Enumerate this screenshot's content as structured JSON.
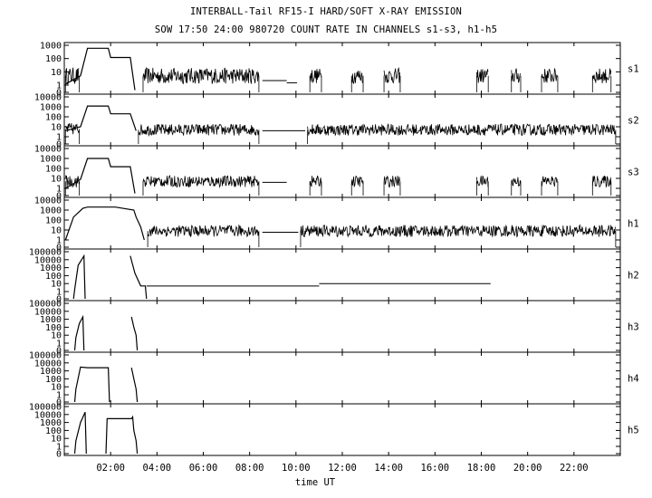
{
  "chart_data": {
    "type": "line",
    "title": "INTERBALL-Tail RF15-I HARD/SOFT X-RAY EMISSION",
    "subtitle": "SOW 17:50 24:00 980720  COUNT RATE IN CHANNELS s1-s3, h1-h5",
    "xlabel": "time UT",
    "xlim": [
      0,
      24
    ],
    "x_ticks": [
      {
        "v": 2,
        "label": "02:00"
      },
      {
        "v": 4,
        "label": "04:00"
      },
      {
        "v": 6,
        "label": "06:00"
      },
      {
        "v": 8,
        "label": "08:00"
      },
      {
        "v": 10,
        "label": "10:00"
      },
      {
        "v": 12,
        "label": "12:00"
      },
      {
        "v": 14,
        "label": "14:00"
      },
      {
        "v": 16,
        "label": "16:00"
      },
      {
        "v": 18,
        "label": "18:00"
      },
      {
        "v": 20,
        "label": "20:00"
      },
      {
        "v": 22,
        "label": "22:00"
      }
    ],
    "y_scale": "log",
    "panels": [
      {
        "name": "s1",
        "y_ticks": [
          {
            "v": 1000,
            "label": "1000"
          },
          {
            "v": 100,
            "label": "100"
          },
          {
            "v": 10,
            "label": "10"
          },
          {
            "v": 1,
            "label": "1"
          },
          {
            "v": 0,
            "label": "0"
          }
        ],
        "envelope": [
          [
            0.05,
            1.2
          ],
          [
            0.7,
            5
          ],
          [
            1.0,
            600
          ],
          [
            1.9,
            600
          ],
          [
            2.0,
            120
          ],
          [
            2.85,
            120
          ],
          [
            3.05,
            0.3
          ]
        ],
        "noisy_segments": [
          {
            "x": [
              0.05,
              0.65
            ],
            "level": 5,
            "amp": 1.5
          },
          {
            "x": [
              3.4,
              8.4
            ],
            "level": 5,
            "amp": 1.4
          },
          {
            "x": [
              10.6,
              11.1
            ],
            "level": 5,
            "amp": 1.3
          },
          {
            "x": [
              12.4,
              12.9
            ],
            "level": 5,
            "amp": 1.3
          },
          {
            "x": [
              13.8,
              14.5
            ],
            "level": 5,
            "amp": 1.3
          },
          {
            "x": [
              17.8,
              18.3
            ],
            "level": 5,
            "amp": 1.3
          },
          {
            "x": [
              19.3,
              19.7
            ],
            "level": 5,
            "amp": 1.3
          },
          {
            "x": [
              20.6,
              21.3
            ],
            "level": 5,
            "amp": 1.3
          },
          {
            "x": [
              22.8,
              23.6
            ],
            "level": 5,
            "amp": 1.3
          }
        ],
        "flat_segments": [
          {
            "x": [
              8.55,
              9.6
            ],
            "level": 2.2
          },
          {
            "x": [
              9.6,
              10.05
            ],
            "level": 1.5
          }
        ]
      },
      {
        "name": "s2",
        "y_ticks": [
          {
            "v": 10000,
            "label": "10000"
          },
          {
            "v": 1000,
            "label": "1000"
          },
          {
            "v": 100,
            "label": "100"
          },
          {
            "v": 10,
            "label": "10"
          },
          {
            "v": 1,
            "label": "1"
          },
          {
            "v": 0,
            "label": "0"
          }
        ],
        "envelope": [
          [
            0.05,
            4
          ],
          [
            0.7,
            10
          ],
          [
            1.0,
            1200
          ],
          [
            1.9,
            1200
          ],
          [
            2.0,
            200
          ],
          [
            2.85,
            200
          ],
          [
            3.1,
            4
          ]
        ],
        "noisy_segments": [
          {
            "x": [
              0.05,
              0.65
            ],
            "level": 6,
            "amp": 1.4
          },
          {
            "x": [
              3.2,
              8.4
            ],
            "level": 5,
            "amp": 1.3
          },
          {
            "x": [
              10.5,
              23.8
            ],
            "level": 5,
            "amp": 1.3
          }
        ],
        "flat_segments": [
          {
            "x": [
              8.55,
              10.4
            ],
            "level": 4
          }
        ]
      },
      {
        "name": "s3",
        "y_ticks": [
          {
            "v": 10000,
            "label": "10000"
          },
          {
            "v": 1000,
            "label": "1000"
          },
          {
            "v": 100,
            "label": "100"
          },
          {
            "v": 10,
            "label": "10"
          },
          {
            "v": 1,
            "label": "1"
          },
          {
            "v": 0,
            "label": "0"
          }
        ],
        "envelope": [
          [
            0.05,
            1
          ],
          [
            0.7,
            8
          ],
          [
            1.0,
            1000
          ],
          [
            1.9,
            1000
          ],
          [
            2.0,
            150
          ],
          [
            2.85,
            150
          ],
          [
            3.05,
            0.3
          ]
        ],
        "noisy_segments": [
          {
            "x": [
              0.05,
              0.65
            ],
            "level": 5,
            "amp": 1.4
          },
          {
            "x": [
              3.4,
              8.4
            ],
            "level": 5,
            "amp": 1.3
          },
          {
            "x": [
              10.6,
              11.1
            ],
            "level": 5,
            "amp": 1.3
          },
          {
            "x": [
              12.4,
              12.9
            ],
            "level": 5,
            "amp": 1.3
          },
          {
            "x": [
              13.8,
              14.5
            ],
            "level": 5,
            "amp": 1.3
          },
          {
            "x": [
              17.8,
              18.3
            ],
            "level": 5,
            "amp": 1.3
          },
          {
            "x": [
              19.3,
              19.7
            ],
            "level": 5,
            "amp": 1.3
          },
          {
            "x": [
              20.6,
              21.3
            ],
            "level": 5,
            "amp": 1.3
          },
          {
            "x": [
              22.8,
              23.6
            ],
            "level": 5,
            "amp": 1.3
          }
        ],
        "flat_segments": [
          {
            "x": [
              8.55,
              9.6
            ],
            "level": 4
          }
        ]
      },
      {
        "name": "h1",
        "y_ticks": [
          {
            "v": 10000,
            "label": "10000"
          },
          {
            "v": 1000,
            "label": "1000"
          },
          {
            "v": 100,
            "label": "100"
          },
          {
            "v": 10,
            "label": "10"
          },
          {
            "v": 1,
            "label": "1"
          },
          {
            "v": 0,
            "label": "0"
          }
        ],
        "envelope": [
          [
            0.05,
            1
          ],
          [
            0.4,
            200
          ],
          [
            0.8,
            1500
          ],
          [
            1.0,
            2000
          ],
          [
            2.2,
            2000
          ],
          [
            3.0,
            1000
          ],
          [
            3.1,
            200
          ],
          [
            3.3,
            20
          ],
          [
            3.45,
            1
          ]
        ],
        "noisy_segments": [
          {
            "x": [
              3.6,
              8.4
            ],
            "level": 8,
            "amp": 1.3
          },
          {
            "x": [
              10.2,
              23.8
            ],
            "level": 8,
            "amp": 1.35
          }
        ],
        "flat_segments": [
          {
            "x": [
              8.55,
              10.1
            ],
            "level": 6
          }
        ]
      },
      {
        "name": "h2",
        "y_ticks": [
          {
            "v": 100000,
            "label": "100000"
          },
          {
            "v": 10000,
            "label": "10000"
          },
          {
            "v": 1000,
            "label": "1000"
          },
          {
            "v": 100,
            "label": "100"
          },
          {
            "v": 10,
            "label": "10"
          },
          {
            "v": 1,
            "label": "1"
          },
          {
            "v": 0,
            "label": "0"
          }
        ],
        "envelope": [
          [
            0.4,
            0
          ],
          [
            0.45,
            2
          ],
          [
            0.6,
            2000
          ],
          [
            0.85,
            30000
          ],
          [
            0.9,
            0
          ]
        ],
        "spikes": [
          [
            2.85,
            30000
          ],
          [
            3.05,
            200
          ],
          [
            3.3,
            5
          ],
          [
            3.5,
            5
          ],
          [
            3.55,
            0
          ]
        ],
        "flat_segments": [
          {
            "x": [
              3.55,
              11.0
            ],
            "level": 5
          },
          {
            "x": [
              11.0,
              18.4
            ],
            "level": 10
          }
        ]
      },
      {
        "name": "h3",
        "y_ticks": [
          {
            "v": 100000,
            "label": "100000"
          },
          {
            "v": 10000,
            "label": "10000"
          },
          {
            "v": 1000,
            "label": "1000"
          },
          {
            "v": 100,
            "label": "100"
          },
          {
            "v": 10,
            "label": "10"
          },
          {
            "v": 1,
            "label": "1"
          },
          {
            "v": 0,
            "label": "0"
          }
        ],
        "envelope": [
          [
            0.45,
            0
          ],
          [
            0.5,
            5
          ],
          [
            0.65,
            300
          ],
          [
            0.8,
            2000
          ],
          [
            0.85,
            0
          ]
        ],
        "spikes": [
          [
            2.9,
            2000
          ],
          [
            3.0,
            100
          ],
          [
            3.1,
            10
          ],
          [
            3.15,
            0
          ]
        ]
      },
      {
        "name": "h4",
        "y_ticks": [
          {
            "v": 100000,
            "label": "100000"
          },
          {
            "v": 10000,
            "label": "10000"
          },
          {
            "v": 1000,
            "label": "1000"
          },
          {
            "v": 100,
            "label": "100"
          },
          {
            "v": 10,
            "label": "10"
          },
          {
            "v": 1,
            "label": "1"
          },
          {
            "v": 0,
            "label": "0"
          }
        ],
        "envelope": [
          [
            0.45,
            0
          ],
          [
            0.5,
            5
          ],
          [
            0.7,
            3000
          ],
          [
            1.0,
            2500
          ],
          [
            1.9,
            2500
          ],
          [
            1.95,
            0
          ]
        ],
        "spikes": [
          [
            2.9,
            2500
          ],
          [
            3.0,
            100
          ],
          [
            3.1,
            5
          ],
          [
            3.15,
            0
          ]
        ]
      },
      {
        "name": "h5",
        "y_ticks": [
          {
            "v": 100000,
            "label": "100000"
          },
          {
            "v": 10000,
            "label": "10000"
          },
          {
            "v": 1000,
            "label": "1000"
          },
          {
            "v": 100,
            "label": "100"
          },
          {
            "v": 10,
            "label": "10"
          },
          {
            "v": 1,
            "label": "1"
          },
          {
            "v": 0,
            "label": "0"
          }
        ],
        "envelope": [
          [
            0.45,
            0
          ],
          [
            0.5,
            5
          ],
          [
            0.7,
            1000
          ],
          [
            0.9,
            20000
          ],
          [
            0.95,
            0
          ]
        ],
        "spikes": [
          [
            1.8,
            0
          ],
          [
            1.85,
            3000
          ],
          [
            2.9,
            3000
          ],
          [
            2.95,
            5000
          ],
          [
            3.0,
            100
          ],
          [
            3.1,
            5
          ],
          [
            3.15,
            0
          ]
        ]
      }
    ]
  }
}
